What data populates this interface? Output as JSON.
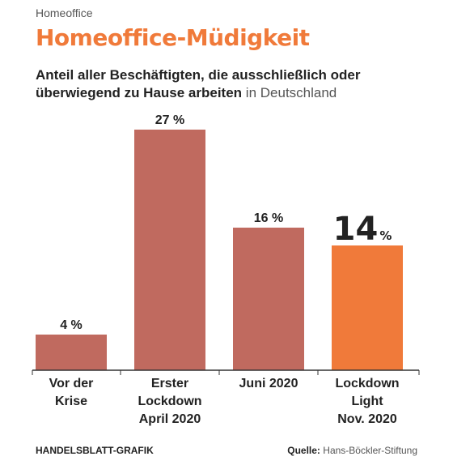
{
  "header": {
    "kicker": "Homeoffice",
    "title": "Homeoffice-Müdigkeit",
    "subtitle_bold": "Anteil aller Beschäftigten, die ausschließlich oder überwiegend zu Hause arbeiten",
    "subtitle_light": "in Deutschland"
  },
  "footer": {
    "credit": "HANDELSBLATT-GRAFIK",
    "source_label": "Quelle:",
    "source_text": "Hans-Böckler-Stiftung"
  },
  "colors": {
    "bar": "#c06a5f",
    "highlight": "#f07a3a",
    "axis": "#333333"
  },
  "chart_data": {
    "type": "bar",
    "categories": [
      [
        "Vor der",
        "Krise"
      ],
      [
        "Erster",
        "Lockdown",
        "April 2020"
      ],
      [
        "Juni 2020"
      ],
      [
        "Lockdown",
        "Light",
        "Nov. 2020"
      ]
    ],
    "values": [
      4,
      27,
      16,
      14
    ],
    "labels": [
      "4 %",
      "27 %",
      "16 %",
      "14"
    ],
    "unit": "%",
    "highlight_index": 3,
    "ylim": [
      0,
      27
    ]
  }
}
